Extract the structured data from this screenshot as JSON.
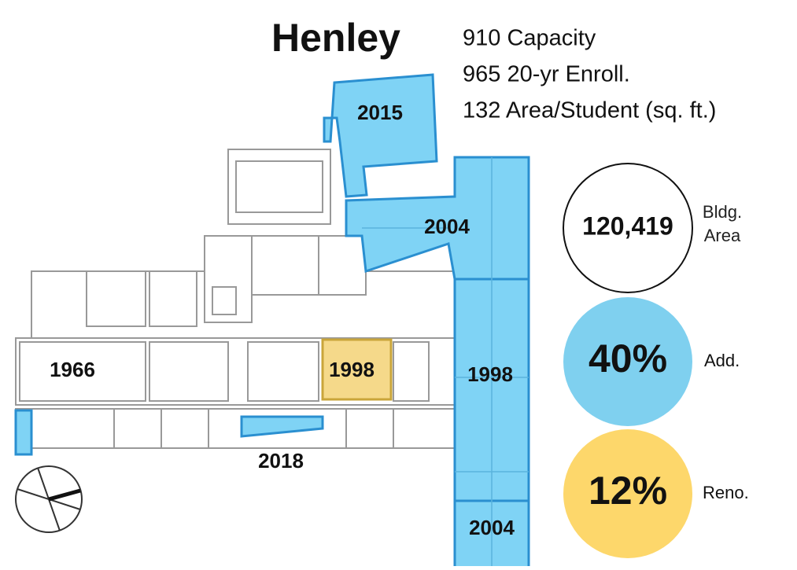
{
  "header": {
    "title": "Henley"
  },
  "stats": [
    "910 Capacity",
    "965 20-yr Enroll.",
    "132 Area/Student (sq. ft.)"
  ],
  "sections": [
    {
      "label": "2015"
    },
    {
      "label": "2004"
    },
    {
      "label": "1966"
    },
    {
      "label": "1998"
    },
    {
      "label": "1998"
    },
    {
      "label": "2018"
    },
    {
      "label": "2004"
    }
  ],
  "metrics": [
    {
      "value": "120,419",
      "label": "Bldg. Area"
    },
    {
      "value": "40%",
      "label": "Add."
    },
    {
      "value": "12%",
      "label": "Reno."
    }
  ]
}
